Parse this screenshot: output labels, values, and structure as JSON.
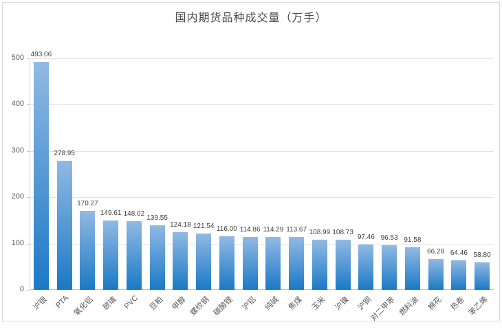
{
  "title": "国内期货品种成交量（万手）",
  "chart_data": {
    "type": "bar",
    "title": "国内期货品种成交量（万手）",
    "xlabel": "",
    "ylabel": "",
    "ylim": [
      0,
      500
    ],
    "yticks": [
      0,
      100,
      200,
      300,
      400,
      500
    ],
    "grid": true,
    "legend": "none",
    "categories": [
      "沪银",
      "PTA",
      "氧化铝",
      "玻璃",
      "PVC",
      "豆粕",
      "甲醇",
      "螺纹钢",
      "碳酸锂",
      "沪铝",
      "纯碱",
      "焦煤",
      "玉米",
      "沪镍",
      "沪铜",
      "对二甲苯",
      "燃料油",
      "棉花",
      "热卷",
      "苯乙烯"
    ],
    "values": [
      493.06,
      278.95,
      170.27,
      149.61,
      148.02,
      139.55,
      124.18,
      121.54,
      116.0,
      114.86,
      114.29,
      113.67,
      108.99,
      108.73,
      97.46,
      96.53,
      91.58,
      66.28,
      64.46,
      58.8
    ],
    "value_labels": [
      "493.06",
      "278.95",
      "170.27",
      "149.61",
      "148.02",
      "139.55",
      "124.18",
      "121.54",
      "116.00",
      "114.86",
      "114.29",
      "113.67",
      "108.99",
      "108.73",
      "97.46",
      "96.53",
      "91.58",
      "66.28",
      "64.46",
      "58.80"
    ]
  },
  "colors": {
    "bar_gradient_top": "#92b9e4",
    "bar_gradient_bottom": "#1a79c5",
    "gridline": "#e2e2e2",
    "axis": "#c6c6c6",
    "title_text": "#4a4a4a",
    "tick_text": "#595959",
    "value_text": "#3f3f3f",
    "frame_border": "#d9d9d9"
  }
}
